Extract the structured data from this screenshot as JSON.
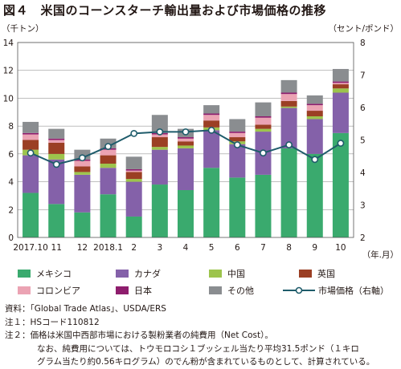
{
  "title": "図４　米国のコーンスターチ輸出量および市場価格の推移",
  "legend_items": [
    "メキシコ",
    "カナダ",
    "中国",
    "英国",
    "コロンビア",
    "日本",
    "その他",
    "市場価格（右軸）"
  ],
  "notes": [
    "資料：「Global Trade Atlas」、USDA/ERS",
    "注１：HSコード110812",
    "注２：価格は米国中西部市場における製粉業者の純費用（Net Cost）。",
    "なお、純費用については、トウモロコシ１ブッシェル当たり平均31.5ポンド（１キロ",
    "グラム当たり約0.56キログラム）のでん粉が含まれているものとして、計算されている。"
  ],
  "chart_data": {
    "type": "bar",
    "stacked": true,
    "categories": [
      "2017.10",
      "11",
      "12",
      "2018.1",
      "2",
      "3",
      "4",
      "5",
      "6",
      "7",
      "8",
      "9",
      "10"
    ],
    "xlabel": "（年.月）",
    "ylabel_left": "（千トン）",
    "ylabel_right": "（セント/ポンド）",
    "ylim_left": [
      0,
      14
    ],
    "yticks_left": [
      0,
      2,
      4,
      6,
      8,
      10,
      12,
      14
    ],
    "ylim_right": [
      2,
      8
    ],
    "yticks_right": [
      2,
      3,
      4,
      5,
      6,
      7,
      8
    ],
    "grid": true,
    "series": [
      {
        "name": "メキシコ",
        "color": "#3aaa6e",
        "values": [
          3.2,
          2.4,
          1.8,
          3.1,
          1.5,
          3.8,
          3.4,
          5.0,
          4.3,
          4.5,
          6.4,
          6.0,
          7.5
        ]
      },
      {
        "name": "カナダ",
        "color": "#8461a9",
        "values": [
          2.7,
          3.2,
          2.7,
          1.9,
          2.5,
          2.5,
          3.0,
          2.7,
          2.4,
          3.1,
          2.9,
          2.5,
          2.9
        ]
      },
      {
        "name": "中国",
        "color": "#9dc44d",
        "values": [
          0.4,
          0.4,
          0.2,
          0.3,
          0.2,
          0.2,
          0.2,
          0.2,
          0.2,
          0.2,
          0.1,
          0.2,
          0.3
        ]
      },
      {
        "name": "英国",
        "color": "#9b3f24",
        "values": [
          0.7,
          0.8,
          0.4,
          0.6,
          0.5,
          0.7,
          0.3,
          0.5,
          0.3,
          0.3,
          0.4,
          0.4,
          0.3
        ]
      },
      {
        "name": "コロンビア",
        "color": "#eba3b3",
        "values": [
          0.4,
          0.2,
          0.4,
          0.4,
          0.1,
          0.2,
          0.2,
          0.4,
          0.3,
          0.5,
          0.5,
          0.4,
          0.1
        ]
      },
      {
        "name": "日本",
        "color": "#8e1d6d",
        "values": [
          0.1,
          0.1,
          0.1,
          0.1,
          0.1,
          0.1,
          0.1,
          0.1,
          0.1,
          0.1,
          0.1,
          0.1,
          0.1
        ]
      },
      {
        "name": "その他",
        "color": "#8a8d90",
        "values": [
          0.8,
          0.7,
          0.7,
          0.7,
          0.9,
          1.3,
          0.6,
          0.6,
          0.9,
          1.0,
          0.9,
          0.6,
          0.9
        ]
      }
    ],
    "line": {
      "name": "市場価格（右軸）",
      "axis": "right",
      "color": "#1f5c6b",
      "values": [
        4.6,
        4.25,
        4.45,
        4.8,
        5.2,
        5.25,
        5.25,
        5.3,
        4.85,
        4.6,
        4.85,
        4.4,
        4.9
      ]
    }
  }
}
